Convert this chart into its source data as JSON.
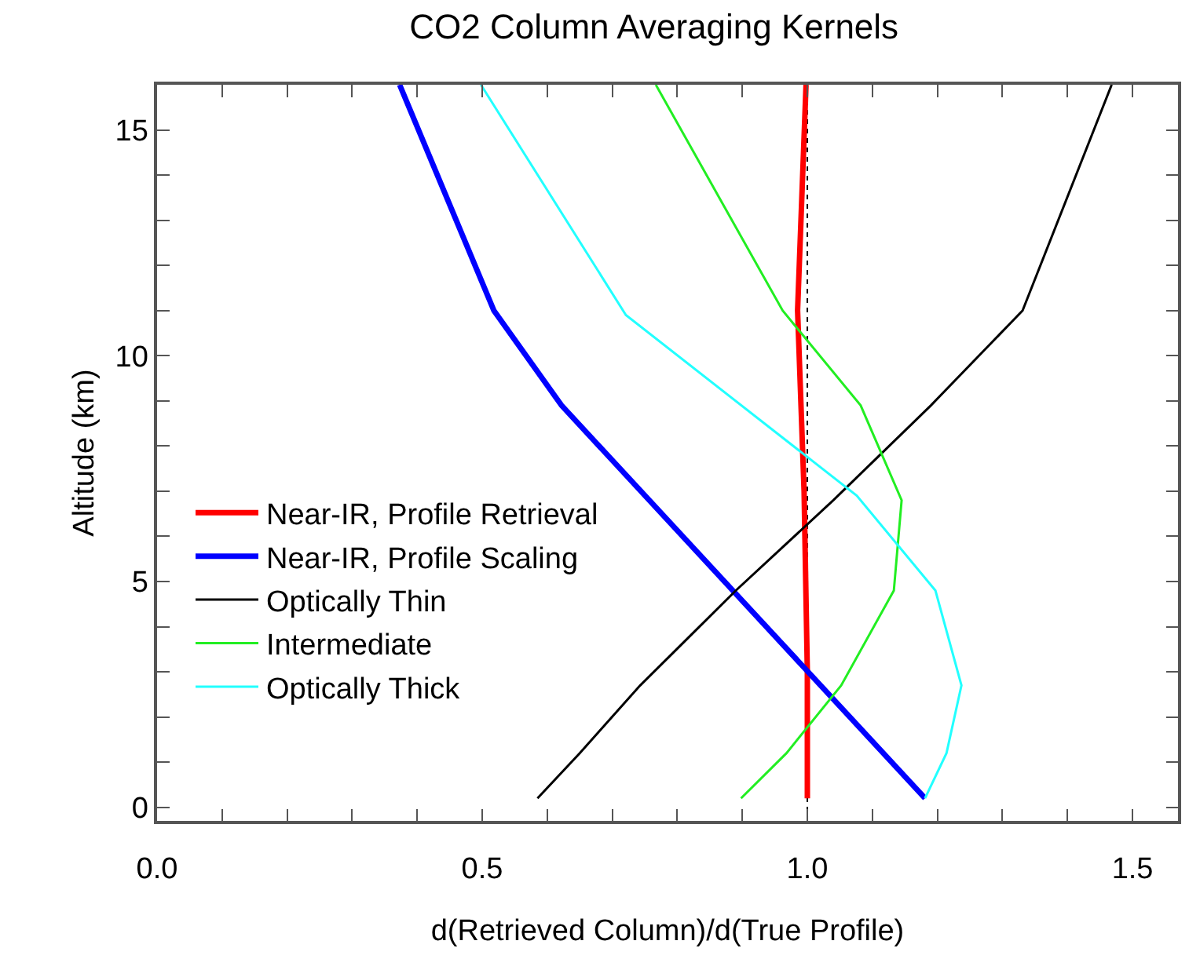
{
  "chart_data": {
    "type": "line",
    "title": "CO2 Column Averaging Kernels",
    "xlabel": "d(Retrieved Column)/d(True Profile)",
    "ylabel": "Altitude (km)",
    "series": [
      {
        "name": "Near-IR, Profile Retrieval",
        "color": "#ff0000",
        "x": [
          1.0,
          1.0,
          0.995,
          0.985,
          0.998
        ],
        "values": [
          0.2,
          3,
          7,
          11,
          16
        ]
      },
      {
        "name": "Near-IR, Profile Scaling",
        "color": "#0000ff",
        "x": [
          1.181,
          0.622,
          0.518,
          0.373
        ],
        "values": [
          0.2,
          8.9,
          11,
          16
        ]
      },
      {
        "name": "Optically Thin",
        "color": "#000000",
        "x": [
          0.585,
          0.65,
          0.743,
          0.89,
          1.04,
          1.19,
          1.331,
          1.468
        ],
        "values": [
          0.2,
          1.2,
          2.7,
          4.8,
          6.8,
          8.9,
          11,
          16
        ]
      },
      {
        "name": "Intermediate",
        "color": "#22ee22",
        "x": [
          0.898,
          0.968,
          1.052,
          1.133,
          1.145,
          1.082,
          0.962,
          0.767
        ],
        "values": [
          0.2,
          1.2,
          2.7,
          4.8,
          6.8,
          8.9,
          11,
          16
        ]
      },
      {
        "name": "Optically Thick",
        "color": "#22ffff",
        "x": [
          1.181,
          1.214,
          1.237,
          1.197,
          1.076,
          0.721,
          0.498
        ],
        "values": [
          0.2,
          1.2,
          2.7,
          4.8,
          6.9,
          10.9,
          16
        ]
      }
    ],
    "ref_lines": [
      {
        "axis": "x",
        "value": 1.0,
        "color": "#000000",
        "line_style": "dotted"
      }
    ],
    "xlim": [
      0,
      1.57
    ],
    "ylim": [
      -0.3,
      16
    ],
    "xticks": [
      {
        "value": 0,
        "label": "0.0"
      },
      {
        "value": 0.1,
        "label": null
      },
      {
        "value": 0.2,
        "label": null
      },
      {
        "value": 0.3,
        "label": null
      },
      {
        "value": 0.4,
        "label": null
      },
      {
        "value": 0.5,
        "label": "0.5"
      },
      {
        "value": 0.6,
        "label": null
      },
      {
        "value": 0.7,
        "label": null
      },
      {
        "value": 0.8,
        "label": null
      },
      {
        "value": 0.9,
        "label": null
      },
      {
        "value": 1.0,
        "label": "1.0"
      },
      {
        "value": 1.1,
        "label": null
      },
      {
        "value": 1.2,
        "label": null
      },
      {
        "value": 1.3,
        "label": null
      },
      {
        "value": 1.4,
        "label": null
      },
      {
        "value": 1.5,
        "label": "1.5"
      }
    ],
    "yticks": [
      0,
      {
        "value": 1,
        "label": null
      },
      {
        "value": 2,
        "label": null
      },
      {
        "value": 3,
        "label": null
      },
      {
        "value": 4,
        "label": null
      },
      5,
      {
        "value": 6,
        "label": null
      },
      {
        "value": 7,
        "label": null
      },
      {
        "value": 8,
        "label": null
      },
      {
        "value": 9,
        "label": null
      },
      10,
      {
        "value": 11,
        "label": null
      },
      {
        "value": 12,
        "label": null
      },
      {
        "value": 13,
        "label": null
      },
      {
        "value": 14,
        "label": null
      },
      15
    ],
    "grid": false,
    "legend": "left",
    "marker": "none",
    "line_style": "solid"
  }
}
